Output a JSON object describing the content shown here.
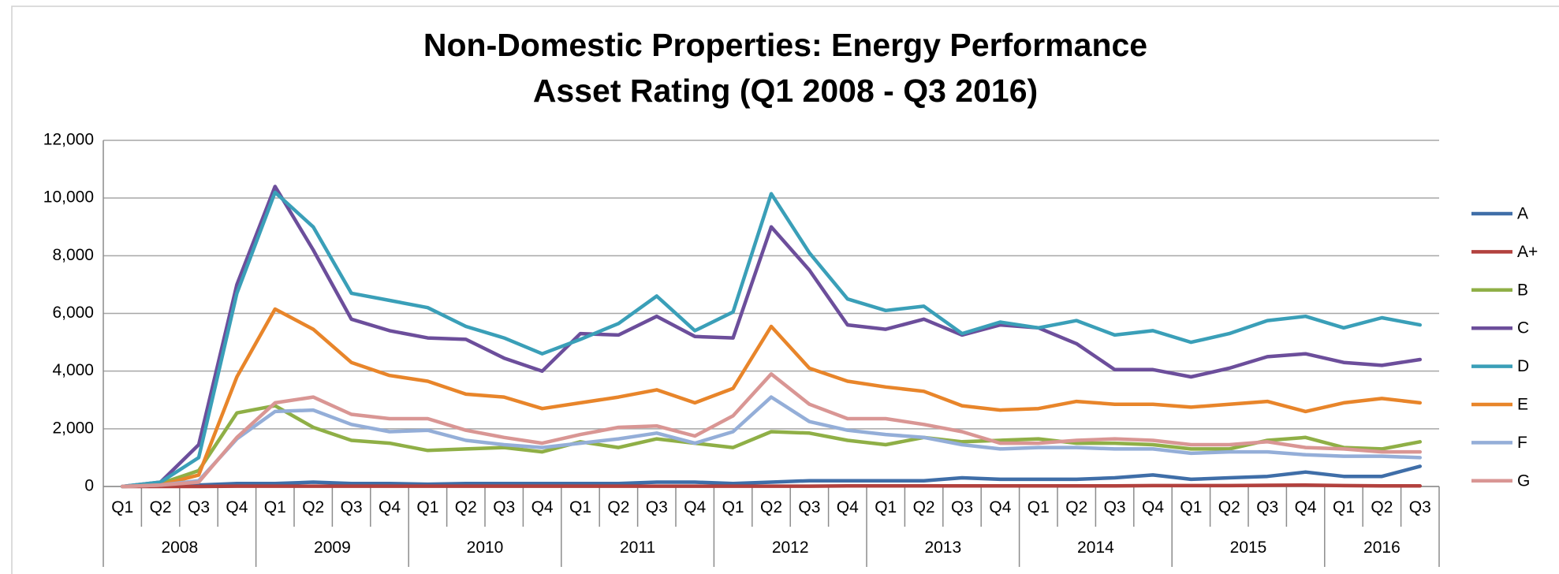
{
  "chart_data": {
    "type": "line",
    "title": [
      "Non-Domestic Properties: Energy Performance",
      "Asset Rating (Q1 2008 - Q3 2016)"
    ],
    "categories": [
      "Q1",
      "Q2",
      "Q3",
      "Q4",
      "Q1",
      "Q2",
      "Q3",
      "Q4",
      "Q1",
      "Q2",
      "Q3",
      "Q4",
      "Q1",
      "Q2",
      "Q3",
      "Q4",
      "Q1",
      "Q2",
      "Q3",
      "Q4",
      "Q1",
      "Q2",
      "Q3",
      "Q4",
      "Q1",
      "Q2",
      "Q3",
      "Q4",
      "Q1",
      "Q2",
      "Q3",
      "Q4",
      "Q1",
      "Q2",
      "Q3"
    ],
    "category_groups": [
      "2008",
      "2009",
      "2010",
      "2011",
      "2012",
      "2013",
      "2014",
      "2015",
      "2016"
    ],
    "ylim": [
      0,
      12000
    ],
    "yticks": [
      0,
      {
        "value": 2000,
        "label": "2,000"
      },
      {
        "value": 4000,
        "label": "4,000"
      },
      {
        "value": 6000,
        "label": "6,000"
      },
      {
        "value": 8000,
        "label": "8,000"
      },
      {
        "value": 10000,
        "label": "10,000"
      },
      {
        "value": 12000,
        "label": "12,000"
      }
    ],
    "grid": true,
    "legend": "right",
    "series": [
      {
        "name": "A",
        "color": "#3f6ea8",
        "values": [
          0,
          50,
          50,
          100,
          100,
          150,
          100,
          100,
          80,
          100,
          100,
          100,
          100,
          100,
          150,
          150,
          100,
          150,
          200,
          200,
          200,
          200,
          300,
          250,
          250,
          250,
          300,
          400,
          250,
          300,
          350,
          500,
          350,
          350,
          700
        ]
      },
      {
        "name": "A+",
        "color": "#b2413e",
        "values": [
          0,
          0,
          0,
          10,
          10,
          10,
          10,
          10,
          10,
          10,
          10,
          10,
          10,
          10,
          10,
          10,
          10,
          10,
          10,
          20,
          20,
          20,
          20,
          20,
          20,
          20,
          20,
          30,
          30,
          30,
          40,
          50,
          30,
          20,
          20
        ]
      },
      {
        "name": "B",
        "color": "#8faf46",
        "values": [
          0,
          100,
          550,
          2550,
          2800,
          2050,
          1600,
          1500,
          1250,
          1300,
          1350,
          1200,
          1550,
          1350,
          1650,
          1500,
          1350,
          1900,
          1850,
          1600,
          1450,
          1700,
          1550,
          1600,
          1650,
          1500,
          1500,
          1450,
          1300,
          1300,
          1600,
          1700,
          1350,
          1300,
          1550
        ]
      },
      {
        "name": "C",
        "color": "#6c4e9b",
        "values": [
          0,
          150,
          1450,
          7000,
          10400,
          8200,
          5800,
          5400,
          5150,
          5100,
          4450,
          4000,
          5300,
          5250,
          5900,
          5200,
          5150,
          9000,
          7500,
          5600,
          5450,
          5800,
          5250,
          5600,
          5500,
          4950,
          4050,
          4050,
          3800,
          4100,
          4500,
          4600,
          4300,
          4200,
          4400
        ]
      },
      {
        "name": "D",
        "color": "#3a9fb8",
        "values": [
          0,
          150,
          1000,
          6700,
          10200,
          9000,
          6700,
          6450,
          6200,
          5550,
          5150,
          4600,
          5100,
          5650,
          6600,
          5400,
          6050,
          10150,
          8100,
          6500,
          6100,
          6250,
          5300,
          5700,
          5500,
          5750,
          5250,
          5400,
          5000,
          5300,
          5750,
          5900,
          5500,
          5850,
          5600
        ]
      },
      {
        "name": "E",
        "color": "#e8852a",
        "values": [
          0,
          50,
          400,
          3800,
          6150,
          5450,
          4300,
          3850,
          3650,
          3200,
          3100,
          2700,
          2900,
          3100,
          3350,
          2900,
          3400,
          5550,
          4100,
          3650,
          3450,
          3300,
          2800,
          2650,
          2700,
          2950,
          2850,
          2850,
          2750,
          2850,
          2950,
          2600,
          2900,
          3050,
          2900
        ]
      },
      {
        "name": "F",
        "color": "#94aed8",
        "values": [
          0,
          50,
          200,
          1650,
          2600,
          2650,
          2150,
          1900,
          1950,
          1600,
          1450,
          1350,
          1500,
          1650,
          1850,
          1500,
          1900,
          3100,
          2250,
          1950,
          1800,
          1700,
          1450,
          1300,
          1350,
          1350,
          1300,
          1300,
          1150,
          1200,
          1200,
          1100,
          1050,
          1050,
          1000
        ]
      },
      {
        "name": "G",
        "color": "#d99694",
        "values": [
          0,
          50,
          150,
          1700,
          2900,
          3100,
          2500,
          2350,
          2350,
          1950,
          1700,
          1500,
          1800,
          2050,
          2100,
          1750,
          2450,
          3900,
          2850,
          2350,
          2350,
          2150,
          1900,
          1500,
          1500,
          1600,
          1650,
          1600,
          1450,
          1450,
          1550,
          1350,
          1300,
          1200,
          1200
        ]
      }
    ]
  }
}
